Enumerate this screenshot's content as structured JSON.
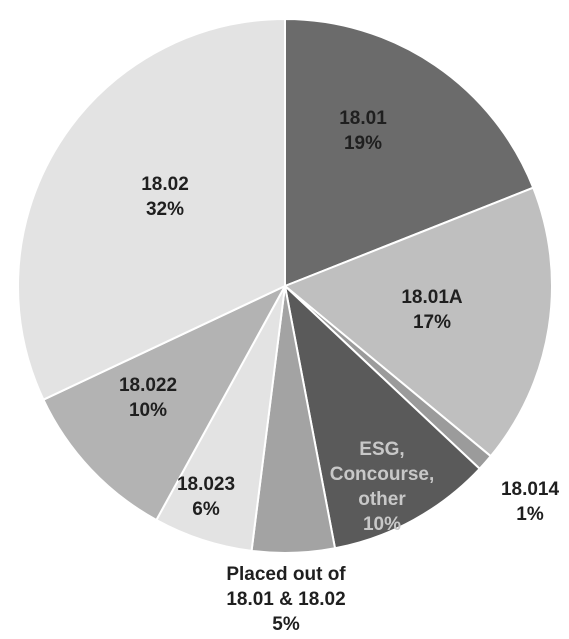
{
  "chart_data": {
    "type": "pie",
    "title": "",
    "start_angle_deg": 0,
    "direction": "clockwise",
    "slices": [
      {
        "label_lines": [
          "18.01"
        ],
        "value": 19,
        "value_text": "19%",
        "color": "#6b6b6b",
        "text_color": "#1f1f1f"
      },
      {
        "label_lines": [
          "18.01A"
        ],
        "value": 17,
        "value_text": "17%",
        "color": "#bfbfbf",
        "text_color": "#1f1f1f"
      },
      {
        "label_lines": [
          "18.014"
        ],
        "value": 1,
        "value_text": "1%",
        "color": "#9b9b9b",
        "text_color": "#1f1f1f"
      },
      {
        "label_lines": [
          "ESG,",
          "Concourse,",
          "other"
        ],
        "value": 10,
        "value_text": "10%",
        "color": "#5a5a5a",
        "text_color": "#c8c8c8"
      },
      {
        "label_lines": [
          "Placed out of",
          "18.01 & 18.02"
        ],
        "value": 5,
        "value_text": "5%",
        "color": "#a3a3a3",
        "text_color": "#1f1f1f"
      },
      {
        "label_lines": [
          "18.023"
        ],
        "value": 6,
        "value_text": "6%",
        "color": "#e3e3e3",
        "text_color": "#1f1f1f"
      },
      {
        "label_lines": [
          "18.022"
        ],
        "value": 10,
        "value_text": "10%",
        "color": "#b3b3b3",
        "text_color": "#1f1f1f"
      },
      {
        "label_lines": [
          "18.02"
        ],
        "value": 32,
        "value_text": "32%",
        "color": "#e3e3e3",
        "text_color": "#1f1f1f"
      }
    ]
  }
}
